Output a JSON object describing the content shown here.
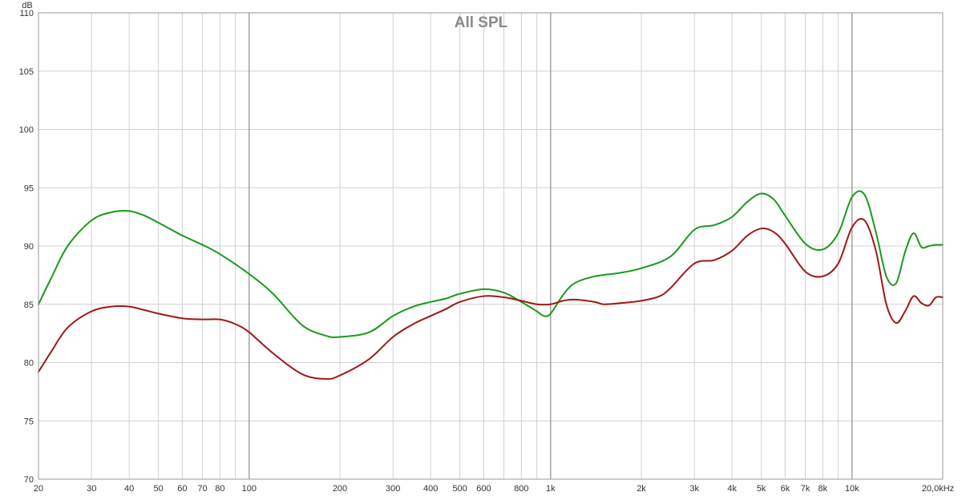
{
  "chart_data": {
    "type": "line",
    "title": "All SPL",
    "ylabel": "dB",
    "xlabel": "",
    "x_scale": "log",
    "xlim": [
      20,
      20000
    ],
    "ylim": [
      70,
      110
    ],
    "y_ticks": [
      110,
      105,
      100,
      95,
      90,
      85,
      80,
      75,
      70
    ],
    "x_ticks": [
      {
        "value": 20,
        "label": "20"
      },
      {
        "value": 30,
        "label": "30"
      },
      {
        "value": 40,
        "label": "40"
      },
      {
        "value": 50,
        "label": "50"
      },
      {
        "value": 60,
        "label": "60"
      },
      {
        "value": 70,
        "label": "70"
      },
      {
        "value": 80,
        "label": "80"
      },
      {
        "value": 100,
        "label": "100"
      },
      {
        "value": 200,
        "label": "200"
      },
      {
        "value": 300,
        "label": "300"
      },
      {
        "value": 400,
        "label": "400"
      },
      {
        "value": 500,
        "label": "500"
      },
      {
        "value": 600,
        "label": "600"
      },
      {
        "value": 800,
        "label": "800"
      },
      {
        "value": 1000,
        "label": "1k"
      },
      {
        "value": 2000,
        "label": "2k"
      },
      {
        "value": 3000,
        "label": "3k"
      },
      {
        "value": 4000,
        "label": "4k"
      },
      {
        "value": 5000,
        "label": "5k"
      },
      {
        "value": 6000,
        "label": "6k"
      },
      {
        "value": 7000,
        "label": "7k"
      },
      {
        "value": 8000,
        "label": "8k"
      },
      {
        "value": 10000,
        "label": "10k"
      },
      {
        "value": 20000,
        "label": "20,0kHz"
      }
    ],
    "grid": true,
    "series": [
      {
        "color": "#1a9a1a",
        "x": [
          20,
          22,
          25,
          30,
          35,
          40,
          45,
          50,
          60,
          70,
          80,
          100,
          120,
          150,
          180,
          200,
          250,
          300,
          350,
          400,
          450,
          500,
          600,
          700,
          800,
          900,
          950,
          1000,
          1100,
          1200,
          1400,
          1700,
          2000,
          2500,
          3000,
          3500,
          4000,
          4500,
          5000,
          5500,
          6000,
          7000,
          8000,
          9000,
          10000,
          11000,
          12000,
          13000,
          14000,
          15000,
          16000,
          17000,
          18000,
          19000,
          20000
        ],
        "y": [
          85.0,
          87.2,
          90.0,
          92.2,
          92.9,
          93.0,
          92.6,
          92.0,
          90.9,
          90.1,
          89.3,
          87.6,
          85.9,
          83.2,
          82.3,
          82.2,
          82.6,
          84.0,
          84.8,
          85.2,
          85.5,
          85.9,
          86.3,
          86.0,
          85.2,
          84.4,
          84.0,
          84.2,
          85.8,
          86.8,
          87.4,
          87.7,
          88.1,
          89.1,
          91.4,
          91.8,
          92.5,
          93.8,
          94.5,
          94.0,
          92.6,
          90.2,
          89.7,
          91.1,
          94.2,
          94.4,
          91.2,
          87.4,
          86.8,
          89.5,
          91.1,
          89.9,
          90.0,
          90.1,
          90.1
        ]
      },
      {
        "color": "#a01818",
        "x": [
          20,
          22,
          25,
          30,
          35,
          40,
          45,
          50,
          60,
          70,
          80,
          90,
          100,
          120,
          150,
          180,
          200,
          250,
          300,
          350,
          400,
          450,
          500,
          600,
          700,
          800,
          900,
          1000,
          1100,
          1200,
          1400,
          1500,
          1700,
          2000,
          2300,
          2500,
          3000,
          3500,
          4000,
          4500,
          5000,
          5500,
          6000,
          7000,
          8000,
          9000,
          10000,
          11000,
          12000,
          13000,
          14000,
          15000,
          16000,
          17000,
          18000,
          19000,
          20000
        ],
        "y": [
          79.2,
          80.9,
          83.0,
          84.4,
          84.8,
          84.8,
          84.5,
          84.2,
          83.8,
          83.7,
          83.7,
          83.3,
          82.6,
          80.8,
          79.0,
          78.6,
          78.9,
          80.3,
          82.2,
          83.3,
          84.0,
          84.6,
          85.2,
          85.7,
          85.6,
          85.3,
          85.0,
          85.0,
          85.3,
          85.4,
          85.2,
          85.0,
          85.1,
          85.3,
          85.7,
          86.4,
          88.5,
          88.8,
          89.6,
          90.9,
          91.5,
          91.2,
          90.2,
          87.8,
          87.4,
          88.5,
          91.6,
          92.2,
          89.6,
          85.0,
          83.4,
          84.4,
          85.7,
          85.1,
          84.9,
          85.6,
          85.6
        ]
      }
    ]
  }
}
